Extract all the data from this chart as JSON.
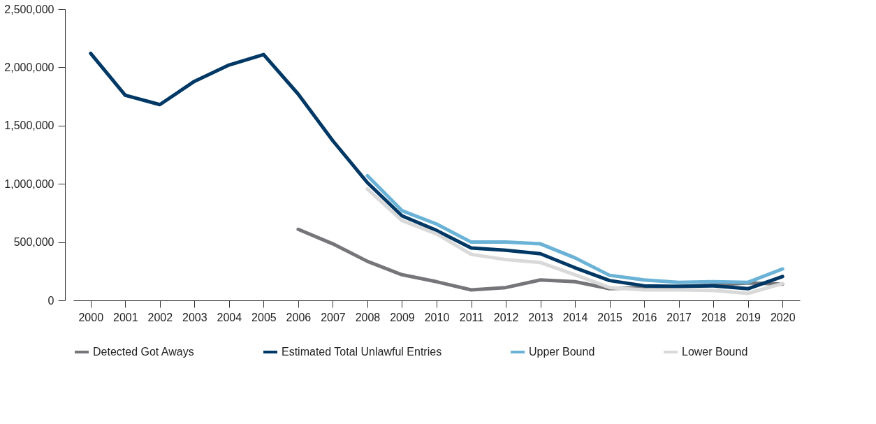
{
  "chart_data": {
    "type": "line",
    "categories": [
      "2000",
      "2001",
      "2002",
      "2003",
      "2004",
      "2005",
      "2006",
      "2007",
      "2008",
      "2009",
      "2010",
      "2011",
      "2012",
      "2013",
      "2014",
      "2015",
      "2016",
      "2017",
      "2018",
      "2019",
      "2020"
    ],
    "series": [
      {
        "name": "Detected Got Aways",
        "color": "#76767a",
        "values": [
          null,
          null,
          null,
          null,
          null,
          null,
          610000,
          485000,
          335000,
          220000,
          160000,
          90000,
          110000,
          175000,
          160000,
          100000,
          110000,
          120000,
          130000,
          150000,
          140000
        ]
      },
      {
        "name": "Estimated Total Unlawful Entries",
        "color": "#003865",
        "values": [
          2120000,
          1760000,
          1680000,
          1880000,
          2020000,
          2110000,
          1770000,
          1370000,
          1010000,
          725000,
          600000,
          450000,
          430000,
          400000,
          280000,
          170000,
          125000,
          120000,
          125000,
          100000,
          205000
        ]
      },
      {
        "name": "Upper Bound",
        "color": "#6ab2d6",
        "values": [
          null,
          null,
          null,
          null,
          null,
          null,
          null,
          null,
          1070000,
          770000,
          655000,
          500000,
          500000,
          485000,
          365000,
          215000,
          175000,
          155000,
          160000,
          155000,
          270000
        ]
      },
      {
        "name": "Lower Bound",
        "color": "#d9d9d9",
        "values": [
          null,
          null,
          null,
          null,
          null,
          null,
          null,
          null,
          955000,
          685000,
          570000,
          395000,
          350000,
          325000,
          220000,
          110000,
          90000,
          90000,
          85000,
          60000,
          145000
        ]
      }
    ],
    "ylim": [
      0,
      2500000
    ],
    "yticks": [
      0,
      {
        "value": 500000,
        "label": "500,000"
      },
      {
        "value": 1000000,
        "label": "1,000,000"
      },
      {
        "value": 1500000,
        "label": "1,500,000"
      },
      {
        "value": 2000000,
        "label": "2,000,000"
      },
      {
        "value": 2500000,
        "label": "2,500,000"
      }
    ],
    "grid": false,
    "legend": "bottom",
    "line_style": "solid",
    "marker": "none"
  }
}
